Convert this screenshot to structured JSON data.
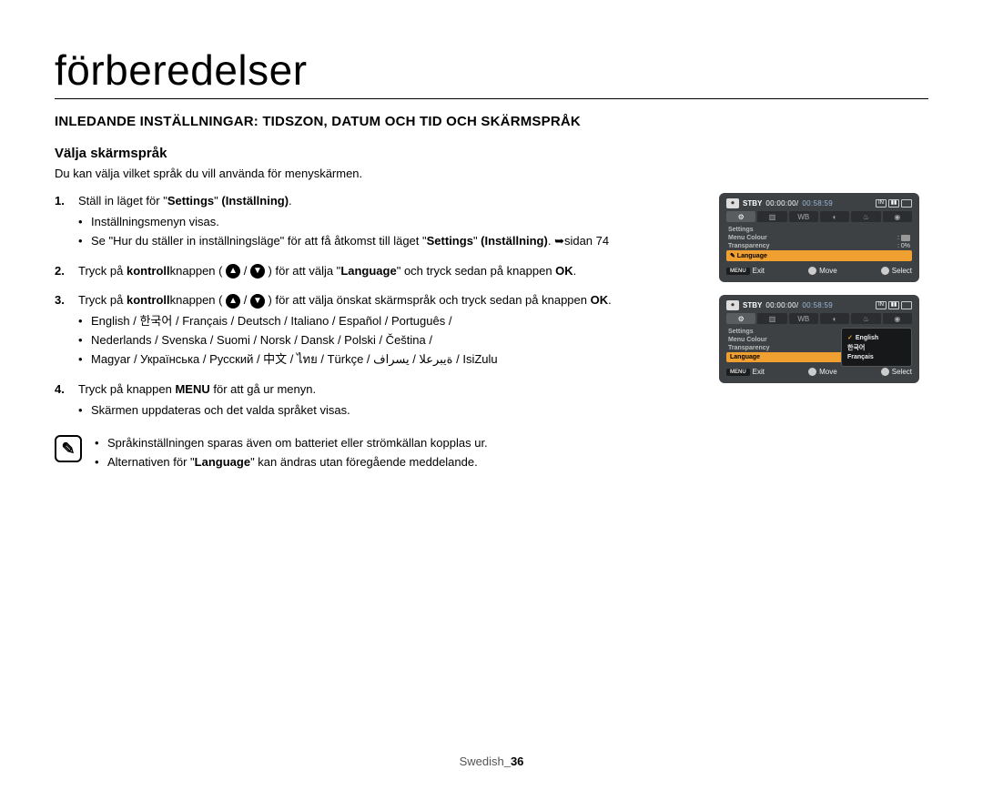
{
  "page": {
    "title": "förberedelser",
    "section_heading": "INLEDANDE INSTÄLLNINGAR: TIDSZON, DATUM OCH TID OCH SKÄRMSPRÅK",
    "subheading": "Välja skärmspråk",
    "intro": "Du kan välja vilket språk du vill använda för menyskärmen.",
    "footer_label": "Swedish",
    "footer_page": "_36"
  },
  "steps": {
    "s1_a": "Ställ in läget för \"",
    "s1_b": "Settings",
    "s1_c": "\" ",
    "s1_d": "(Inställning)",
    "s1_e": ".",
    "s1_bullets": {
      "b1": "Inställningsmenyn visas.",
      "b2_a": "Se \"Hur du ställer in inställningsläge\" för att få åtkomst till läget \"",
      "b2_b": "Settings",
      "b2_c": "\" ",
      "b2_d": "(Inställning)",
      "b2_e": ". ➥sidan 74"
    },
    "s2_a": "Tryck på ",
    "s2_b": "kontroll",
    "s2_c": "knappen ( ",
    "s2_d": " / ",
    "s2_e": " ) för att välja \"",
    "s2_f": "Language",
    "s2_g": "\" och tryck sedan på knappen ",
    "s2_h": "OK",
    "s2_i": ".",
    "s3_a": "Tryck på ",
    "s3_b": "kontroll",
    "s3_c": "knappen ( ",
    "s3_d": " / ",
    "s3_e": " ) för att välja önskat skärmspråk och tryck sedan på knappen ",
    "s3_f": "OK",
    "s3_g": ".",
    "s3_bullets": {
      "b1": "English / 한국어 / Français / Deutsch / Italiano / Español / Português /",
      "b2": "Nederlands / Svenska / Suomi / Norsk / Dansk / Polski / Čeština /",
      "b3": "Magyar / Українська / Русский / 中文 / ไทย / Türkçe / ةيبرعلا / یسراف / IsiZulu"
    },
    "s4_a": "Tryck på knappen ",
    "s4_b": "MENU",
    "s4_c": " för att gå ur menyn.",
    "s4_bullets": {
      "b1": "Skärmen uppdateras och det valda språket visas."
    }
  },
  "notes": {
    "n1": "Språkinställningen sparas även om batteriet eller strömkällan kopplas ur.",
    "n2_a": "Alternativen för \"",
    "n2_b": "Language",
    "n2_c": "\" kan ändras utan föregående meddelande."
  },
  "screen_common": {
    "stby": "STBY",
    "time1": "00:00:00/",
    "time2": "00:58:59",
    "menu_label": "MENU",
    "footer_exit": "Exit",
    "footer_move": "Move",
    "footer_select": "Select",
    "tab_gear": "⚙",
    "colors": {
      "bg": "#3e4144",
      "highlight": "#f0a030",
      "text_light": "#eeeeee",
      "text_dim": "#bbbbbb",
      "time2_color": "#9ab7d9"
    }
  },
  "screen1": {
    "rows": [
      {
        "label": "Settings",
        "value": ""
      },
      {
        "label": "Menu Colour",
        "value": "box"
      },
      {
        "label": "Transparency",
        "value": "0%"
      },
      {
        "label": "Language",
        "value": "",
        "selected": true,
        "icon": "✎"
      }
    ]
  },
  "screen2": {
    "rows": [
      {
        "label": "Settings",
        "value": ""
      },
      {
        "label": "Menu Colour",
        "value": ""
      },
      {
        "label": "Transparency",
        "value": ""
      },
      {
        "label": "Language",
        "value": "",
        "selected": true
      }
    ],
    "popup": {
      "options": [
        {
          "label": "English",
          "checked": true
        },
        {
          "label": "한국어",
          "checked": false
        },
        {
          "label": "Français",
          "checked": false
        }
      ]
    }
  }
}
